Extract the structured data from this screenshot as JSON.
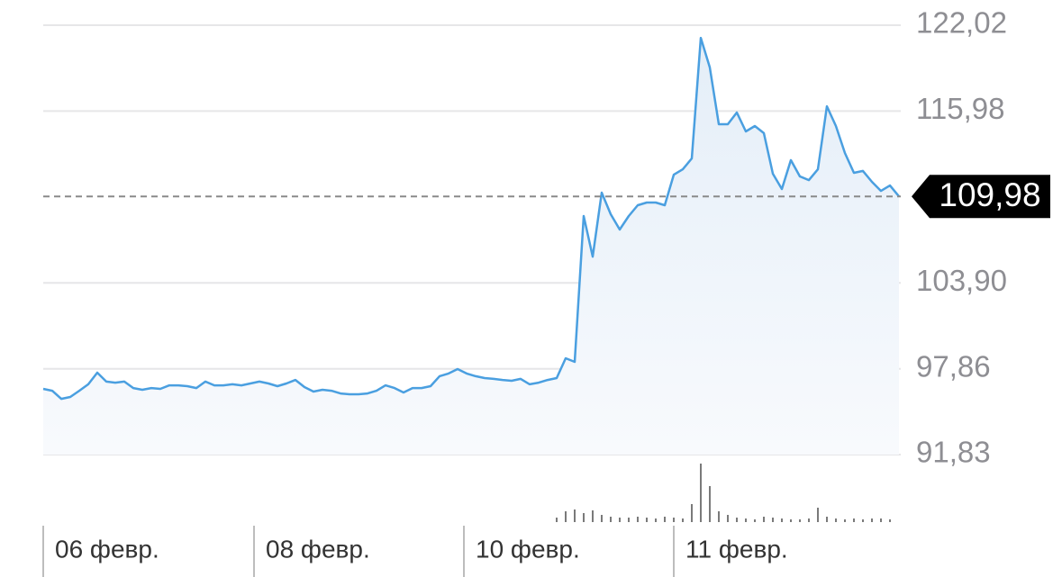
{
  "chart_data": {
    "type": "line",
    "x": [
      0,
      1,
      2,
      3,
      4,
      5,
      6,
      7,
      8,
      9,
      10,
      11,
      12,
      13,
      14,
      15,
      16,
      17,
      18,
      19,
      20,
      21,
      22,
      23,
      24,
      25,
      26,
      27,
      28,
      29,
      30,
      31,
      32,
      33,
      34,
      35,
      36,
      37,
      38,
      39,
      40,
      41,
      42,
      43,
      44,
      45,
      46,
      47,
      48,
      49,
      50,
      51,
      52,
      53,
      54,
      55,
      56,
      57,
      58,
      59,
      60,
      61,
      62,
      63,
      64,
      65,
      66,
      67,
      68,
      69,
      70,
      71,
      72,
      73,
      74,
      75,
      76,
      77,
      78,
      79,
      80,
      81,
      82,
      83,
      84,
      85,
      86,
      87,
      88,
      89,
      90,
      91,
      92,
      93,
      94,
      95
    ],
    "values": [
      96.45,
      96.32,
      95.75,
      95.88,
      96.32,
      96.77,
      97.59,
      96.96,
      96.89,
      96.96,
      96.51,
      96.39,
      96.51,
      96.45,
      96.7,
      96.7,
      96.64,
      96.51,
      96.96,
      96.7,
      96.7,
      96.77,
      96.7,
      96.83,
      96.96,
      96.83,
      96.64,
      96.83,
      97.08,
      96.58,
      96.26,
      96.39,
      96.32,
      96.13,
      96.07,
      96.07,
      96.13,
      96.32,
      96.7,
      96.51,
      96.2,
      96.51,
      96.51,
      96.64,
      97.34,
      97.53,
      97.84,
      97.53,
      97.34,
      97.21,
      97.15,
      97.08,
      97.02,
      97.15,
      96.77,
      96.89,
      97.08,
      97.21,
      98.6,
      98.35,
      108.6,
      105.75,
      110.25,
      108.73,
      107.65,
      108.6,
      109.36,
      109.55,
      109.55,
      109.36,
      111.51,
      111.89,
      112.65,
      121.13,
      119.05,
      115.06,
      115.06,
      115.88,
      114.55,
      114.93,
      114.43,
      111.58,
      110.5,
      112.53,
      111.39,
      111.13,
      111.89,
      116.32,
      114.93,
      113.03,
      111.64,
      111.77,
      111.01,
      110.37,
      110.75,
      109.98
    ],
    "color": "#4a9fe0",
    "volume": [
      0,
      0,
      0,
      0,
      0,
      0,
      0,
      0,
      0,
      0,
      0,
      0,
      0,
      0,
      0,
      0,
      0,
      0,
      0,
      0,
      0,
      0,
      0,
      0,
      0,
      0,
      0,
      0,
      0,
      0,
      0,
      0,
      0,
      0,
      0,
      0,
      0,
      0,
      0,
      0,
      0,
      0,
      0,
      0,
      0,
      0,
      0,
      0,
      0,
      0,
      0,
      0,
      0,
      0,
      0,
      0,
      0,
      5,
      12,
      14,
      10,
      13,
      8,
      6,
      5,
      5,
      6,
      5,
      4,
      6,
      5,
      4,
      20,
      65,
      40,
      12,
      8,
      5,
      4,
      3,
      6,
      5,
      4,
      3,
      3,
      4,
      16,
      6,
      4,
      3,
      4,
      3,
      4,
      4,
      3,
      0
    ],
    "volume_color": "#7a7a7a",
    "xlim": [
      0,
      95
    ],
    "xticks": [
      {
        "value": 0,
        "label": "06 февр."
      },
      {
        "value": 23.4,
        "label": "08 февр."
      },
      {
        "value": 46.7,
        "label": "10 февр."
      },
      {
        "value": 70,
        "label": "11 февр."
      }
    ],
    "ylim": [
      91.83,
      122.02
    ],
    "yticks": [
      {
        "value": 91.83,
        "label": "91,83"
      },
      {
        "value": 97.86,
        "label": "97,86"
      },
      {
        "value": 103.9,
        "label": "103,90"
      },
      {
        "value": 115.98,
        "label": "115,98"
      },
      {
        "value": 122.02,
        "label": "122,02"
      }
    ],
    "last_price": {
      "value": 109.98,
      "label": "109,98"
    },
    "grid": true
  }
}
